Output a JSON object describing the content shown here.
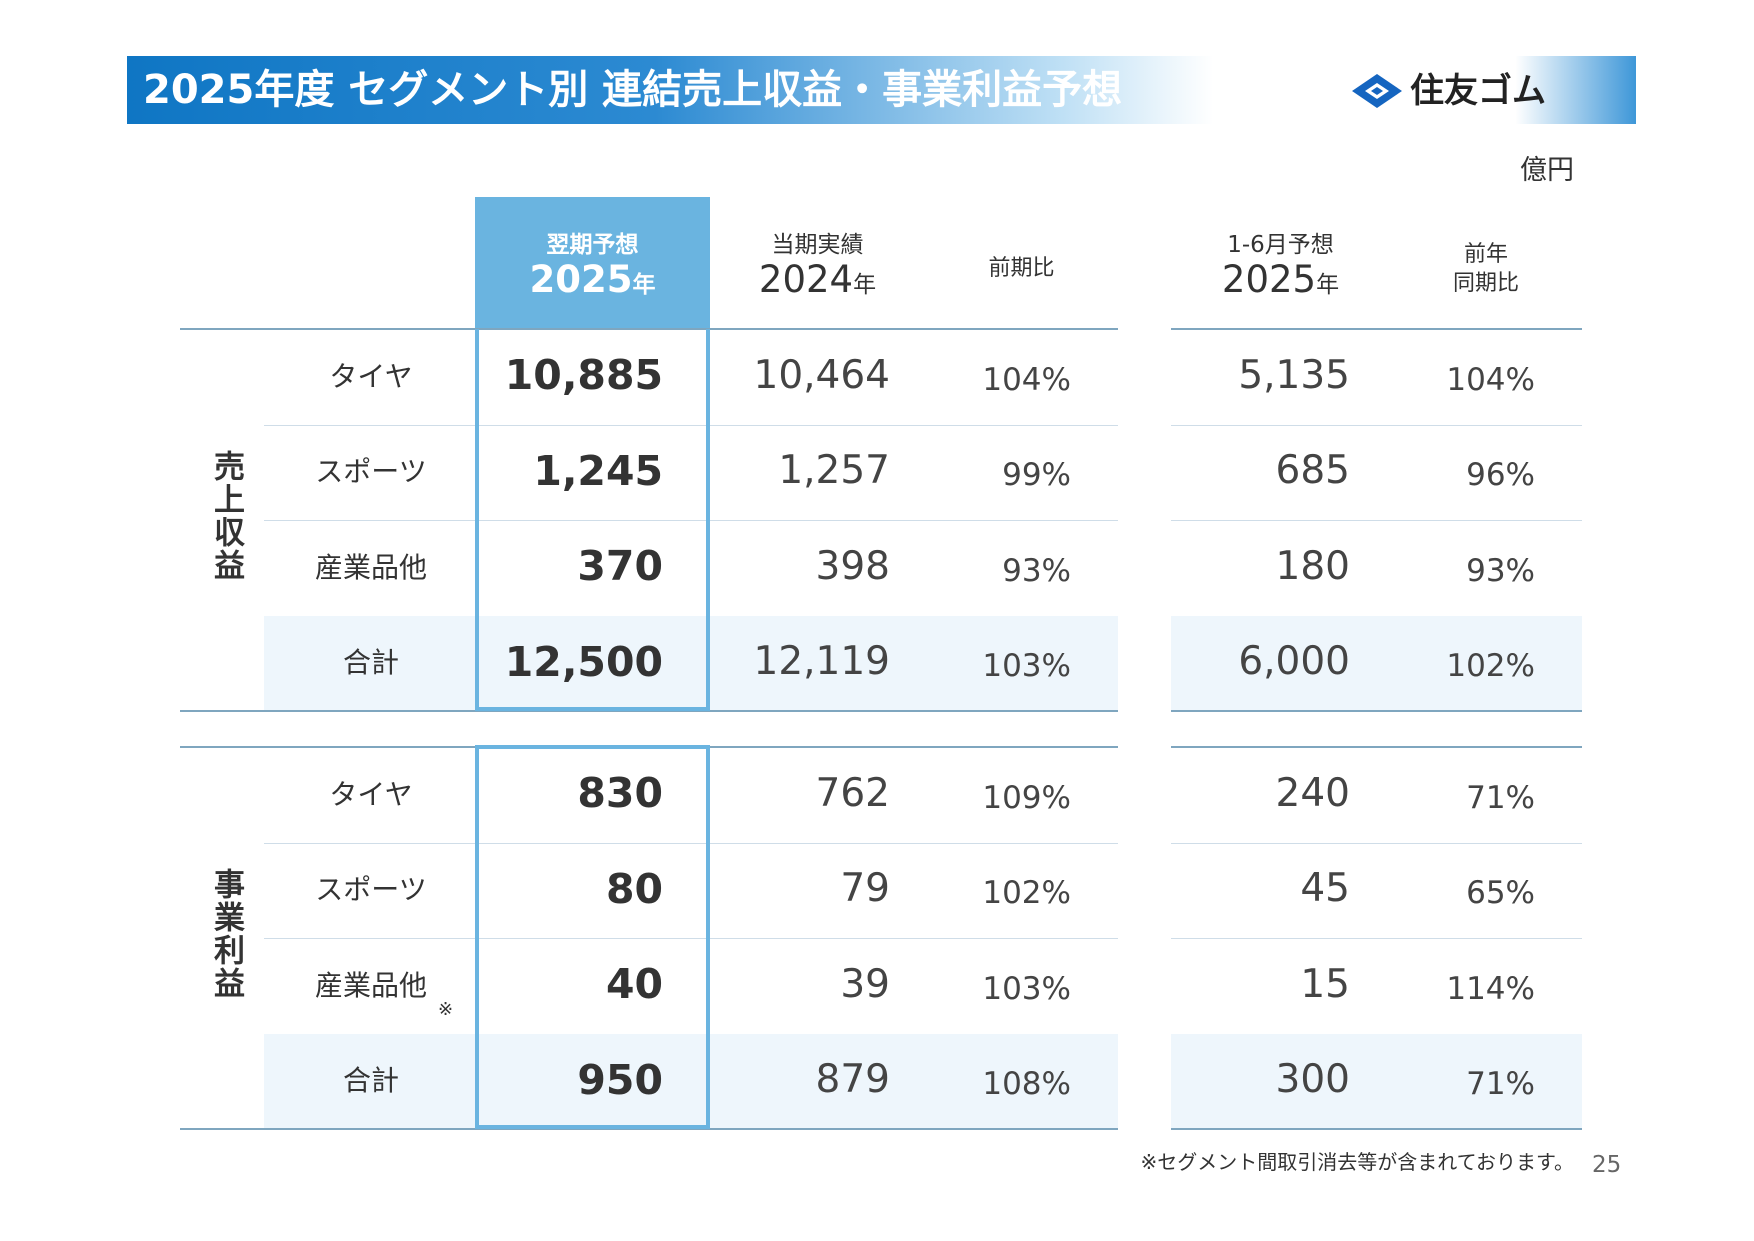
{
  "header": {
    "title": "2025年度 セグメント別 連結売上収益・事業利益予想",
    "logo": "住友ゴム"
  },
  "unit": "億円",
  "columns": [
    {
      "line1": "翌期予想",
      "year": "2025",
      "suffix": "年"
    },
    {
      "line1": "当期実績",
      "year": "2024",
      "suffix": "年"
    },
    {
      "line1": "前期比"
    },
    {
      "line1": "1-6月予想",
      "year": "2025",
      "suffix": "年"
    },
    {
      "line1": "前年",
      "line2": "同期比"
    }
  ],
  "sections": [
    {
      "label": "売上収益",
      "rows": [
        {
          "name": "タイヤ",
          "values": [
            "10,885",
            "10,464",
            "104%",
            "5,135",
            "104%"
          ]
        },
        {
          "name": "スポーツ",
          "values": [
            "1,245",
            "1,257",
            "99%",
            "685",
            "96%"
          ]
        },
        {
          "name": "産業品他",
          "values": [
            "370",
            "398",
            "93%",
            "180",
            "93%"
          ]
        },
        {
          "name": "合計",
          "values": [
            "12,500",
            "12,119",
            "103%",
            "6,000",
            "102%"
          ]
        }
      ]
    },
    {
      "label": "事業利益",
      "rows": [
        {
          "name": "タイヤ",
          "values": [
            "830",
            "762",
            "109%",
            "240",
            "71%"
          ]
        },
        {
          "name": "スポーツ",
          "values": [
            "80",
            "79",
            "102%",
            "45",
            "65%"
          ]
        },
        {
          "name": "産業品他",
          "note": "※",
          "values": [
            "40",
            "39",
            "103%",
            "15",
            "114%"
          ]
        },
        {
          "name": "合計",
          "values": [
            "950",
            "879",
            "108%",
            "300",
            "71%"
          ]
        }
      ]
    }
  ],
  "footnote": "※セグメント間取引消去等が含まれております。",
  "page_number": "25"
}
